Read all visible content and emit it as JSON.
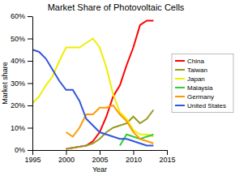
{
  "chart_data": {
    "type": "line",
    "title": "Market Share of Photovoltaic Cells",
    "x_label": "Year",
    "y_label": "Market share",
    "x": [
      1995,
      1996,
      1997,
      1998,
      1999,
      2000,
      2001,
      2002,
      2003,
      2004,
      2005,
      2006,
      2007,
      2008,
      2009,
      2010,
      2011,
      2012,
      2013
    ],
    "series": [
      {
        "name": "China",
        "color": "#ff0000",
        "values": [
          null,
          null,
          null,
          null,
          null,
          0.5,
          1,
          1.5,
          2,
          4,
          8,
          15,
          24,
          29,
          38,
          46,
          56,
          58,
          58
        ]
      },
      {
        "name": "Taiwan",
        "color": "#999922",
        "values": [
          null,
          null,
          null,
          null,
          null,
          0.5,
          1,
          1.5,
          2,
          3,
          5,
          8,
          10,
          11,
          12,
          15,
          12,
          14,
          18
        ]
      },
      {
        "name": "Japan",
        "color": "#eeee00",
        "values": [
          21,
          24,
          29,
          33,
          40,
          46,
          46,
          46,
          48,
          50,
          46,
          37,
          25,
          17,
          14,
          9,
          7,
          7,
          6
        ]
      },
      {
        "name": "Malaysia",
        "color": "#33cc33",
        "values": [
          null,
          null,
          null,
          null,
          null,
          null,
          null,
          null,
          null,
          null,
          null,
          null,
          null,
          2,
          7,
          6,
          5,
          6,
          7
        ]
      },
      {
        "name": "Germany",
        "color": "#ff9900",
        "values": [
          null,
          null,
          null,
          null,
          null,
          8,
          6,
          10,
          16,
          16,
          19,
          19,
          20,
          16,
          13,
          8,
          5,
          4,
          3
        ]
      },
      {
        "name": "United States",
        "color": "#3355dd",
        "values": [
          45,
          44,
          41,
          36,
          31,
          27,
          27,
          22,
          14,
          11,
          8,
          7,
          6,
          5,
          5,
          4,
          3,
          2,
          2
        ]
      }
    ],
    "xlim": [
      1995,
      2015
    ],
    "xticks": [
      1995,
      2000,
      2005,
      2010,
      2015
    ],
    "ylim": [
      0,
      60
    ],
    "yticks": [
      {
        "value": 0,
        "label": "0%"
      },
      {
        "value": 10,
        "label": "10%"
      },
      {
        "value": 20,
        "label": "20%"
      },
      {
        "value": 30,
        "label": "30%"
      },
      {
        "value": 40,
        "label": "40%"
      },
      {
        "value": 50,
        "label": "50%"
      },
      {
        "value": 60,
        "label": "60%"
      }
    ],
    "grid": false,
    "legend": "right"
  }
}
